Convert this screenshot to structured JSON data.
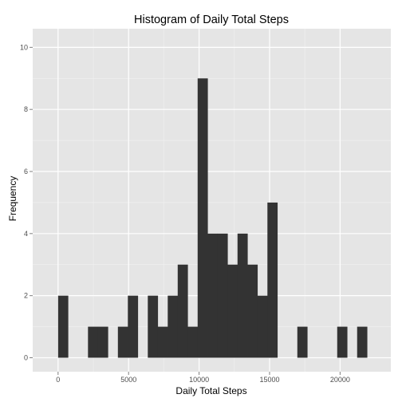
{
  "chart_data": {
    "type": "histogram",
    "title": "Histogram of Daily Total Steps",
    "xlabel": "Daily Total Steps",
    "ylabel": "Frequency",
    "bin_width": 707,
    "bins": [
      {
        "x0": 0,
        "count": 2
      },
      {
        "x0": 2121,
        "count": 1
      },
      {
        "x0": 2828,
        "count": 1
      },
      {
        "x0": 4242,
        "count": 1
      },
      {
        "x0": 4949,
        "count": 2
      },
      {
        "x0": 6363,
        "count": 2
      },
      {
        "x0": 7070,
        "count": 1
      },
      {
        "x0": 7777,
        "count": 2
      },
      {
        "x0": 8484,
        "count": 3
      },
      {
        "x0": 9191,
        "count": 1
      },
      {
        "x0": 9898,
        "count": 9
      },
      {
        "x0": 10605,
        "count": 4
      },
      {
        "x0": 11312,
        "count": 4
      },
      {
        "x0": 12019,
        "count": 3
      },
      {
        "x0": 12726,
        "count": 4
      },
      {
        "x0": 13433,
        "count": 3
      },
      {
        "x0": 14140,
        "count": 2
      },
      {
        "x0": 14847,
        "count": 5
      },
      {
        "x0": 16968,
        "count": 1
      },
      {
        "x0": 19796,
        "count": 1
      },
      {
        "x0": 21210,
        "count": 1
      }
    ],
    "x_ticks": [
      0,
      5000,
      10000,
      15000,
      20000
    ],
    "y_ticks": [
      0,
      2,
      4,
      6,
      8,
      10
    ],
    "xlim": [
      -1800,
      23600
    ],
    "ylim": [
      -0.45,
      10.6
    ],
    "grid": true,
    "colors": {
      "panel": "#e5e5e5",
      "grid_major": "#ffffff",
      "grid_minor": "#f2f2f2",
      "bar": "#333333"
    }
  }
}
